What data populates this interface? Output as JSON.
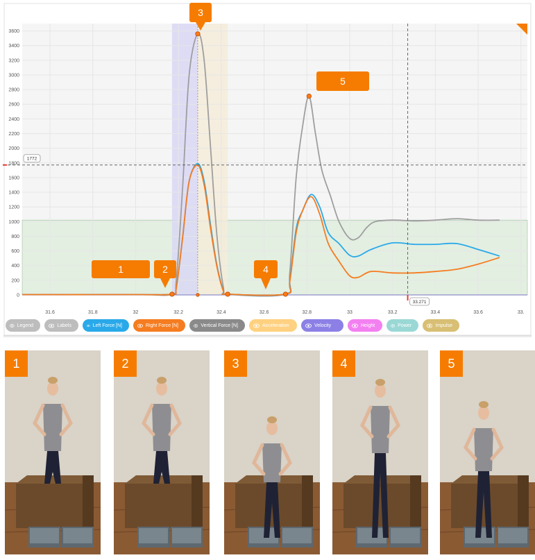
{
  "chart_data": {
    "type": "line",
    "x_ticks": [
      "31.6",
      "31.8",
      "32",
      "32.2",
      "32.4",
      "32.6",
      "32.8",
      "33",
      "33.2",
      "33.4",
      "33.6",
      "33."
    ],
    "y_ticks": [
      "0",
      "200",
      "400",
      "600",
      "800",
      "1000",
      "1200",
      "1400",
      "1600",
      "1800",
      "2000",
      "2200",
      "2400",
      "2600",
      "2800",
      "3000",
      "3200",
      "3400",
      "3600"
    ],
    "xlim": [
      31.47,
      33.83
    ],
    "ylim": [
      0,
      3700
    ],
    "series": [
      {
        "name": "Vertical Force [N]",
        "color": "#9e9e9e",
        "x": [
          31.47,
          32.0,
          32.17,
          32.19,
          32.22,
          32.25,
          32.29,
          32.32,
          32.35,
          32.38,
          32.41,
          32.43,
          32.7,
          32.72,
          32.75,
          32.78,
          32.81,
          32.84,
          32.87,
          32.91,
          32.95,
          33.0,
          33.04,
          33.08,
          33.12,
          33.2,
          33.3,
          33.4,
          33.5,
          33.6,
          33.7
        ],
        "y": [
          5,
          5,
          10,
          200,
          1500,
          3000,
          3560,
          3200,
          2000,
          800,
          100,
          10,
          10,
          300,
          1600,
          2300,
          2710,
          2200,
          1700,
          1350,
          1000,
          770,
          780,
          920,
          1000,
          1020,
          1010,
          1020,
          1040,
          1020,
          1020
        ]
      },
      {
        "name": "Left Force [N]",
        "color": "#29a9e9",
        "x": [
          31.47,
          32.0,
          32.17,
          32.19,
          32.22,
          32.25,
          32.29,
          32.32,
          32.35,
          32.38,
          32.41,
          32.43,
          32.7,
          32.72,
          32.75,
          32.78,
          32.82,
          32.86,
          32.9,
          32.95,
          33.0,
          33.04,
          33.1,
          33.2,
          33.3,
          33.4,
          33.5,
          33.6,
          33.7
        ],
        "y": [
          5,
          5,
          10,
          100,
          800,
          1550,
          1790,
          1550,
          950,
          400,
          60,
          10,
          10,
          200,
          900,
          1150,
          1370,
          1200,
          850,
          700,
          540,
          530,
          620,
          710,
          690,
          690,
          700,
          620,
          530
        ]
      },
      {
        "name": "Right Force [N]",
        "color": "#f57c20",
        "x": [
          31.47,
          32.0,
          32.17,
          32.19,
          32.22,
          32.25,
          32.29,
          32.32,
          32.35,
          32.38,
          32.41,
          32.43,
          32.7,
          32.72,
          32.75,
          32.78,
          32.82,
          32.86,
          32.9,
          32.95,
          33.0,
          33.04,
          33.1,
          33.2,
          33.3,
          33.4,
          33.5,
          33.6,
          33.7
        ],
        "y": [
          5,
          5,
          10,
          100,
          800,
          1550,
          1770,
          1500,
          900,
          380,
          50,
          10,
          10,
          180,
          850,
          1150,
          1340,
          1100,
          700,
          460,
          260,
          240,
          320,
          300,
          300,
          320,
          350,
          420,
          510
        ]
      }
    ],
    "crosshair_y_label": "1772",
    "crosshair_x_label": "33.271",
    "legend": [
      {
        "label": "Legend",
        "color": "#bdbdbd"
      },
      {
        "label": "Labels",
        "color": "#bdbdbd"
      },
      {
        "label": "Left Force [N]",
        "color": "#29a9e9"
      },
      {
        "label": "Right Force [N]",
        "color": "#f57c20"
      },
      {
        "label": "Vertical Force [N]",
        "color": "#8a8a8a"
      },
      {
        "label": "Acceleration",
        "color": "#ffd180"
      },
      {
        "label": "Velocity",
        "color": "#8c80e6"
      },
      {
        "label": "Height",
        "color": "#f380f0"
      },
      {
        "label": "Power",
        "color": "#9ad8d5"
      },
      {
        "label": "Impulse",
        "color": "#d8bf74"
      }
    ],
    "markers": [
      {
        "label": "1",
        "x": 31.97,
        "y": 5
      },
      {
        "label": "2",
        "x": 32.17,
        "y": 10
      },
      {
        "label": "3",
        "x": 32.29,
        "y": 3560
      },
      {
        "label": "4",
        "x": 32.6,
        "y": 10
      },
      {
        "label": "5",
        "x": 32.81,
        "y": 2710
      }
    ]
  },
  "photos": [
    {
      "label": "1"
    },
    {
      "label": "2"
    },
    {
      "label": "3"
    },
    {
      "label": "4"
    },
    {
      "label": "5"
    }
  ],
  "colors": {
    "accent": "#f57c00",
    "grid": "#e6e6e6",
    "zone_green": "#e3efe1",
    "zone_purple": "#d9d7f4",
    "zone_beige": "#f4ecd9"
  }
}
